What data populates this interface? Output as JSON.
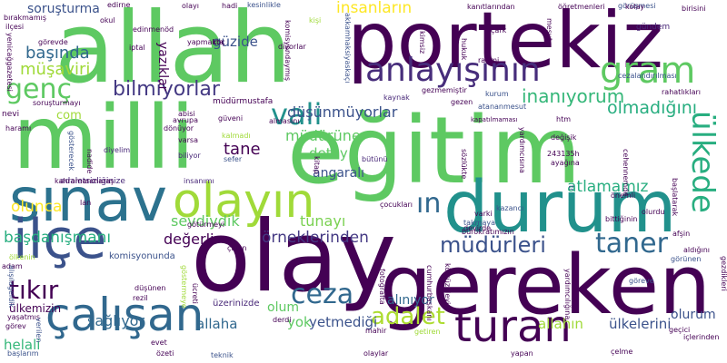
{
  "words": [
    {
      "text": "allah",
      "color": "#5ec962"
    },
    {
      "text": "portekiz",
      "color": "#440154"
    },
    {
      "text": "milli",
      "color": "#5ec962"
    },
    {
      "text": "eğitim",
      "color": "#5ec962"
    },
    {
      "text": "olay",
      "color": "#440154"
    },
    {
      "text": "gereken",
      "color": "#440154"
    },
    {
      "text": "durum",
      "color": "#21918c"
    },
    {
      "text": "sınav",
      "color": "#2c728e"
    },
    {
      "text": "olayın",
      "color": "#a0da39"
    },
    {
      "text": "ilçe",
      "color": "#3b528b"
    },
    {
      "text": "çalışan",
      "color": "#31688e"
    },
    {
      "text": "turan",
      "color": "#440154"
    },
    {
      "text": "anlayışının",
      "color": "#472d7b"
    },
    {
      "text": "gram",
      "color": "#5ec962"
    },
    {
      "text": "vali",
      "color": "#21918c"
    },
    {
      "text": "genç",
      "color": "#5ec962"
    },
    {
      "text": "ülkede",
      "color": "#28ae80"
    },
    {
      "text": "ın",
      "color": "#31688e"
    },
    {
      "text": "taner",
      "color": "#31688e"
    },
    {
      "text": "müdürleri",
      "color": "#3b528b"
    },
    {
      "text": "ceza",
      "color": "#31688e"
    },
    {
      "text": "adalet",
      "color": "#addc30"
    },
    {
      "text": "tıkır",
      "color": "#440154"
    },
    {
      "text": "bilmiyorlar",
      "color": "#443983"
    },
    {
      "text": "düşünmüyorlar",
      "color": "#3b528b"
    },
    {
      "text": "inanıyorum",
      "color": "#35b779"
    },
    {
      "text": "olmadığını",
      "color": "#28ae80"
    },
    {
      "text": "sevdiydik",
      "color": "#5ec962"
    },
    {
      "text": "tunayı",
      "color": "#7ad151"
    },
    {
      "text": "değerli",
      "color": "#440154"
    },
    {
      "text": "örneklerinden",
      "color": "#443983"
    },
    {
      "text": "başdanışmanı",
      "color": "#28ae80"
    },
    {
      "text": "soruşturma",
      "color": "#3b528b"
    },
    {
      "text": "başında",
      "color": "#31688e"
    },
    {
      "text": "müşaviri",
      "color": "#a0da39"
    },
    {
      "text": "güzide",
      "color": "#3b528b"
    },
    {
      "text": "insanların",
      "color": "#fde725"
    },
    {
      "text": "tane",
      "color": "#440154"
    },
    {
      "text": "detay",
      "color": "#5ec962"
    },
    {
      "text": "angaralı",
      "color": "#3b528b"
    },
    {
      "text": "atlamamız",
      "color": "#28ae80"
    },
    {
      "text": "müdürüne",
      "color": "#5ec962"
    },
    {
      "text": "olunca",
      "color": "#fde725"
    },
    {
      "text": "yazıklar",
      "color": "#440154"
    },
    {
      "text": "sağlıyor",
      "color": "#31688e"
    },
    {
      "text": "allaha",
      "color": "#31688e"
    },
    {
      "text": "yok",
      "color": "#5ec962"
    },
    {
      "text": "yetmediği",
      "color": "#3b528b"
    },
    {
      "text": "olum",
      "color": "#5ec962"
    },
    {
      "text": "alınıyor",
      "color": "#31688e"
    },
    {
      "text": "allahın",
      "color": "#a0da39"
    },
    {
      "text": "ülkelerini",
      "color": "#3b528b"
    },
    {
      "text": "olurum",
      "color": "#3b528b"
    },
    {
      "text": "helali",
      "color": "#35b779"
    },
    {
      "text": "com",
      "color": "#a0da39"
    },
    {
      "text": "ülkemizin",
      "color": "#440154"
    },
    {
      "text": "komisyonunda",
      "color": "#3b528b"
    },
    {
      "text": "üzerinizde",
      "color": "#482878"
    },
    {
      "text": "edirne",
      "color": "#440154"
    },
    {
      "text": "başlarım",
      "color": "#3b528b"
    },
    {
      "text": "görüşmesi",
      "color": "#3b528b"
    },
    {
      "text": "gündem",
      "color": "#482878"
    },
    {
      "text": "kolay",
      "color": "#440154"
    },
    {
      "text": "birisini",
      "color": "#440154"
    },
    {
      "text": "müdürmustafa",
      "color": "#440154"
    },
    {
      "text": "avrupa",
      "color": "#440154"
    },
    {
      "text": "dönüyor",
      "color": "#440154"
    },
    {
      "text": "varsa",
      "color": "#440154"
    },
    {
      "text": "diyelim",
      "color": "#482878"
    },
    {
      "text": "biliyor",
      "color": "#482878"
    },
    {
      "text": "adaletsizliğinize",
      "color": "#482878"
    },
    {
      "text": "insanımı",
      "color": "#482878"
    },
    {
      "text": "bütünü",
      "color": "#482878"
    },
    {
      "text": "gezen",
      "color": "#440154"
    },
    {
      "text": "htm",
      "color": "#440154"
    },
    {
      "text": "rahatlıkları",
      "color": "#440154"
    },
    {
      "text": "kaynak",
      "color": "#482878"
    },
    {
      "text": "gezmemiştir",
      "color": "#440154"
    },
    {
      "text": "kapatılmaması",
      "color": "#440154"
    },
    {
      "text": "atananmesut",
      "color": "#3b528b"
    },
    {
      "text": "kurum",
      "color": "#3b528b"
    },
    {
      "text": "cezalandırılması",
      "color": "#3b528b"
    },
    {
      "text": "rahmi",
      "color": "#440154"
    },
    {
      "text": "çark",
      "color": "#440154"
    },
    {
      "text": "öğretmenleri",
      "color": "#440154"
    },
    {
      "text": "kanıtlarından",
      "color": "#440154"
    },
    {
      "text": "kesinlikle",
      "color": "#3b528b"
    },
    {
      "text": "hadi",
      "color": "#440154"
    },
    {
      "text": "olayı",
      "color": "#440154"
    },
    {
      "text": "edinmenöd",
      "color": "#440154"
    },
    {
      "text": "iptal",
      "color": "#440154"
    },
    {
      "text": "okul",
      "color": "#440154"
    },
    {
      "text": "görevde",
      "color": "#440154"
    },
    {
      "text": "yapmakta",
      "color": "#440154"
    },
    {
      "text": "koç",
      "color": "#440154"
    },
    {
      "text": "diyorlar",
      "color": "#440154"
    },
    {
      "text": "kişi",
      "color": "#440154"
    },
    {
      "text": "güveni",
      "color": "#a0da39"
    },
    {
      "text": "almasını",
      "color": "#440154"
    },
    {
      "text": "kalmadı",
      "color": "#440154"
    },
    {
      "text": "abisi",
      "color": "#a0da39"
    },
    {
      "text": "sefer",
      "color": "#440154"
    },
    {
      "text": "değişik",
      "color": "#3b528b"
    },
    {
      "text": "243135h",
      "color": "#440154"
    },
    {
      "text": "ayağına",
      "color": "#440154"
    },
    {
      "text": "kazancı",
      "color": "#440154"
    },
    {
      "text": "varki",
      "color": "#3b528b"
    },
    {
      "text": "olurdu",
      "color": "#440154"
    },
    {
      "text": "bittiğinin",
      "color": "#440154"
    },
    {
      "text": "afşin",
      "color": "#440154"
    },
    {
      "text": "aldığını",
      "color": "#440154"
    },
    {
      "text": "görünen",
      "color": "#440154"
    },
    {
      "text": "devirde",
      "color": "#3b528b"
    },
    {
      "text": "bürokratımızın",
      "color": "#440154"
    },
    {
      "text": "takmaya",
      "color": "#440154"
    },
    {
      "text": "önemli",
      "color": "#3b528b"
    },
    {
      "text": "yapan",
      "color": "#440154"
    },
    {
      "text": "mahir",
      "color": "#440154"
    },
    {
      "text": "derdi",
      "color": "#440154"
    },
    {
      "text": "evet",
      "color": "#440154"
    },
    {
      "text": "teknik",
      "color": "#440154"
    },
    {
      "text": "düşünen",
      "color": "#3b528b"
    },
    {
      "text": "rezil",
      "color": "#440154"
    },
    {
      "text": "özeti",
      "color": "#440154"
    },
    {
      "text": "çelme",
      "color": "#440154"
    },
    {
      "text": "göreve",
      "color": "#440154"
    },
    {
      "text": "görev",
      "color": "#3b528b"
    },
    {
      "text": "yaşatmış",
      "color": "#440154"
    },
    {
      "text": "götürmeyi",
      "color": "#440154"
    },
    {
      "text": "lan",
      "color": "#440154"
    },
    {
      "text": "adam",
      "color": "#440154"
    },
    {
      "text": "ölkenin",
      "color": "#440154"
    },
    {
      "text": "çalan",
      "color": "#a0da39"
    },
    {
      "text": "kahramanmaraş",
      "color": "#440154"
    },
    {
      "text": "çocukları",
      "color": "#440154"
    },
    {
      "text": "haramı",
      "color": "#440154"
    },
    {
      "text": "nevi",
      "color": "#440154"
    },
    {
      "text": "soruşturmayı",
      "color": "#440154"
    },
    {
      "text": "getiren",
      "color": "#440154"
    },
    {
      "text": "geçici",
      "color": "#a0da39"
    },
    {
      "text": "içlerinden",
      "color": "#440154"
    },
    {
      "text": "olaylar",
      "color": "#440154"
    },
    {
      "text": "bırakmamış",
      "color": "#440154"
    },
    {
      "text": "ilçesi",
      "color": "#440154"
    },
    {
      "text": "fabi",
      "color": "#440154"
    }
  ],
  "vertical_words": [
    {
      "text": "yenicağgazetesi",
      "color": "#440154"
    },
    {
      "text": "alışılageldik",
      "color": "#3b528b"
    },
    {
      "text": "akkamhaksiyaskaçı",
      "color": "#3b528b"
    },
    {
      "text": "gösterecek",
      "color": "#3b528b"
    },
    {
      "text": "komisyondaymış",
      "color": "#440154"
    },
    {
      "text": "kötçüzüleyi",
      "color": "#440154"
    },
    {
      "text": "yardımcısına",
      "color": "#440154"
    },
    {
      "text": "cumhurbaşkanı",
      "color": "#440154"
    },
    {
      "text": "sözlükte",
      "color": "#440154"
    },
    {
      "text": "başlatarak",
      "color": "#440154"
    },
    {
      "text": "cehennemde",
      "color": "#440154"
    },
    {
      "text": "gezdikleri",
      "color": "#440154"
    },
    {
      "text": "hukuk",
      "color": "#440154"
    },
    {
      "text": "mesut",
      "color": "#440154"
    },
    {
      "text": "fotoğrafta",
      "color": "#440154"
    },
    {
      "text": "ücreti",
      "color": "#440154"
    },
    {
      "text": "nadide",
      "color": "#440154"
    },
    {
      "text": "göstermeye",
      "color": "#a0da39"
    },
    {
      "text": "kitap",
      "color": "#440154"
    },
    {
      "text": "tr",
      "color": "#3b528b"
    },
    {
      "text": "yardımcılığına",
      "color": "#440154"
    },
    {
      "text": "verilen",
      "color": "#3b528b"
    },
    {
      "text": "kimsiz",
      "color": "#440154"
    }
  ]
}
